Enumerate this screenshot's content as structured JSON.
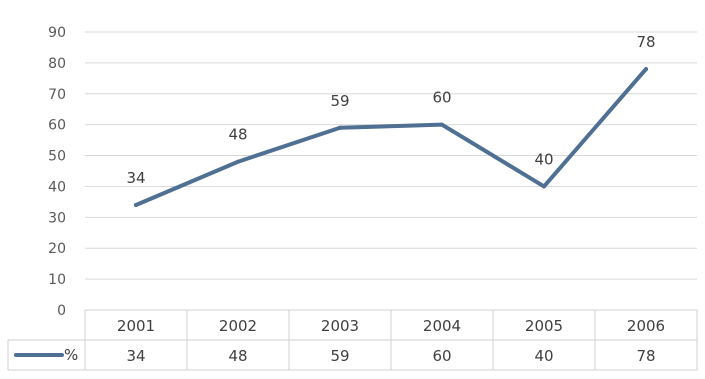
{
  "chart_data": {
    "type": "line",
    "categories": [
      "2001",
      "2002",
      "2003",
      "2004",
      "2005",
      "2006"
    ],
    "series": [
      {
        "name": "%",
        "values": [
          34,
          48,
          59,
          60,
          40,
          78
        ],
        "color": "#4f6f93"
      }
    ],
    "y_ticks": [
      "0",
      "10",
      "20",
      "30",
      "40",
      "50",
      "60",
      "70",
      "80",
      "90"
    ],
    "data_labels": [
      "34",
      "48",
      "59",
      "60",
      "40",
      "78"
    ],
    "ylim": [
      0,
      90
    ],
    "grid": true,
    "data_table": true,
    "legend": "data-table-row"
  }
}
